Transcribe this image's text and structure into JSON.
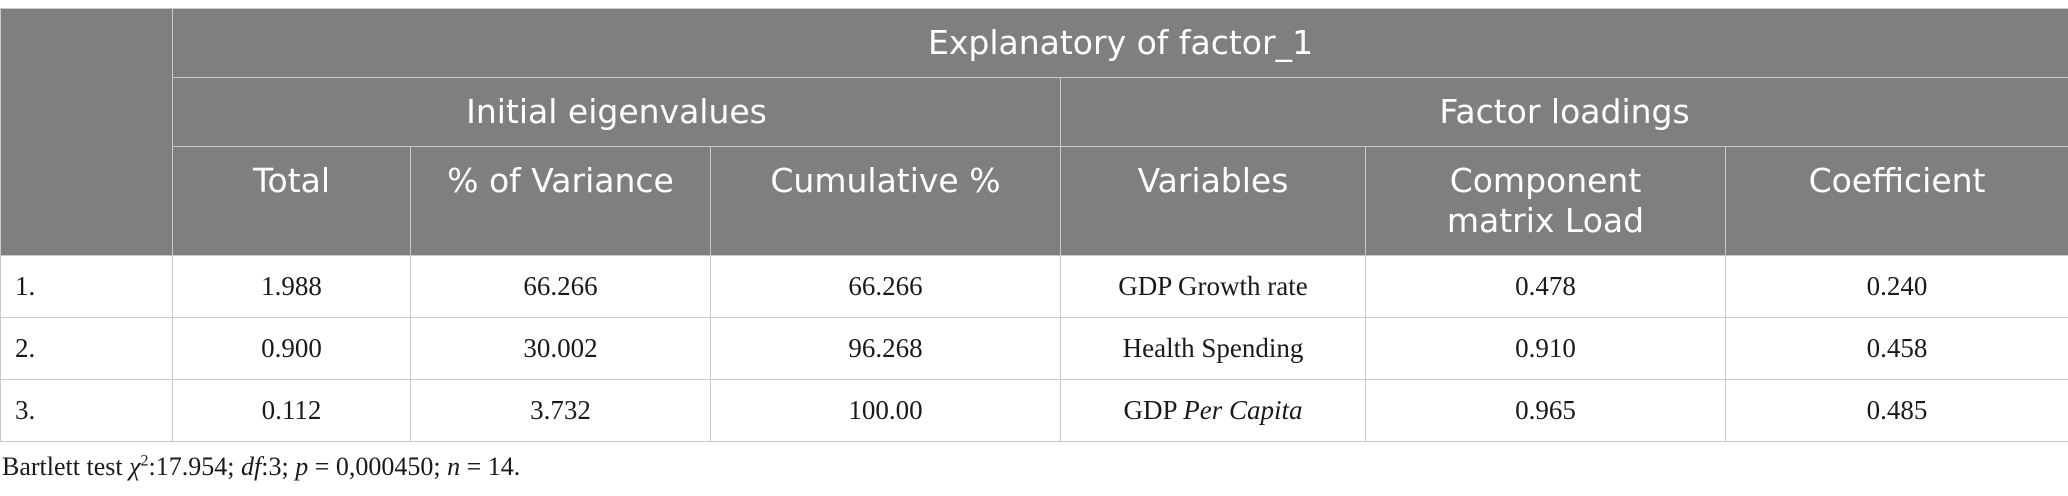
{
  "table": {
    "title": "Explanatory of factor_1",
    "group_headers": [
      "Initial eigenvalues",
      "Factor loadings"
    ],
    "columns": [
      "Total",
      "% of Variance",
      "Cumulative %",
      "Variables",
      "Component matrix Load",
      "Coefficient"
    ],
    "rows": [
      {
        "index": "1.",
        "total": "1.988",
        "variance": "66.266",
        "cumulative": "66.266",
        "variable": "GDP Growth rate",
        "variable_italic": "",
        "load": "0.478",
        "coefficient": "0.240"
      },
      {
        "index": "2.",
        "total": "0.900",
        "variance": "30.002",
        "cumulative": "96.268",
        "variable": "Health Spending",
        "variable_italic": "",
        "load": "0.910",
        "coefficient": "0.458"
      },
      {
        "index": "3.",
        "total": "0.112",
        "variance": "3.732",
        "cumulative": "100.00",
        "variable": "GDP ",
        "variable_italic": "Per Capita",
        "load": "0.965",
        "coefficient": "0.485"
      }
    ]
  },
  "footnote": {
    "prefix": "Bartlett test ",
    "chi": "χ",
    "sup": "2",
    "chi_value": ":17.954; ",
    "df_label": "df",
    "df_value": ":3; ",
    "p_label": "p",
    "p_value": " = 0,000450; ",
    "n_label": "n",
    "n_value": " = 14."
  }
}
